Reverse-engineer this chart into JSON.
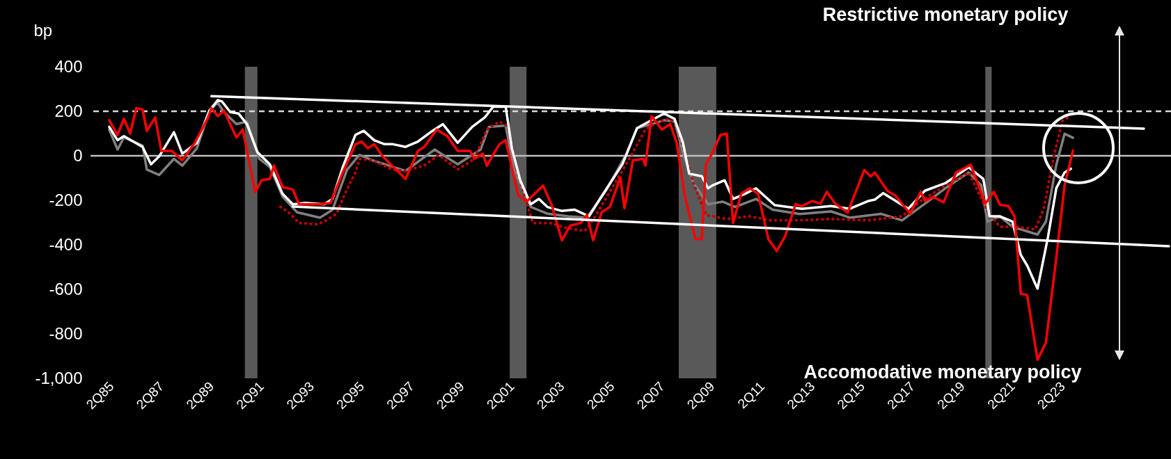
{
  "chart_data": {
    "type": "line",
    "ylabel": "bp",
    "xlim": [
      "1984-06",
      "2027-08"
    ],
    "ylim": [
      -1000,
      400
    ],
    "xticks": [
      {
        "value": "1985-04",
        "label": "2Q85"
      },
      {
        "value": "1987-04",
        "label": "2Q87"
      },
      {
        "value": "1989-04",
        "label": "2Q89"
      },
      {
        "value": "1991-04",
        "label": "2Q91"
      },
      {
        "value": "1993-04",
        "label": "2Q93"
      },
      {
        "value": "1995-04",
        "label": "2Q95"
      },
      {
        "value": "1997-04",
        "label": "2Q97"
      },
      {
        "value": "1999-04",
        "label": "2Q99"
      },
      {
        "value": "2001-04",
        "label": "2Q01"
      },
      {
        "value": "2003-04",
        "label": "2Q03"
      },
      {
        "value": "2005-04",
        "label": "2Q05"
      },
      {
        "value": "2007-04",
        "label": "2Q07"
      },
      {
        "value": "2009-04",
        "label": "2Q09"
      },
      {
        "value": "2011-04",
        "label": "2Q11"
      },
      {
        "value": "2013-04",
        "label": "2Q13"
      },
      {
        "value": "2015-04",
        "label": "2Q15"
      },
      {
        "value": "2017-04",
        "label": "2Q17"
      },
      {
        "value": "2019-04",
        "label": "2Q19"
      },
      {
        "value": "2021-04",
        "label": "2Q21"
      },
      {
        "value": "2023-04",
        "label": "2Q23"
      }
    ],
    "yticks": [
      {
        "value": -1000,
        "label": "-1,000"
      },
      -800,
      -600,
      -400,
      -200,
      0,
      200,
      400
    ],
    "grid": false,
    "bands": [
      {
        "axis": "x",
        "from": "1990-08",
        "to": "1991-02",
        "color": "#595959"
      },
      {
        "axis": "x",
        "from": "2001-03",
        "to": "2001-11",
        "color": "#595959"
      },
      {
        "axis": "x",
        "from": "2007-12",
        "to": "2009-06",
        "color": "#595959"
      },
      {
        "axis": "x",
        "from": "2020-03",
        "to": "2020-06",
        "color": "#595959"
      }
    ],
    "ref_lines": [
      {
        "axis": "y",
        "value": 200,
        "color": "#d9d9d9",
        "line_style": "dashed"
      },
      {
        "axis": "y",
        "value": 0,
        "color": "#bfbfbf",
        "line_style": "solid"
      }
    ],
    "annotations": [
      "Restrictive monetary policy",
      "Accomodative monetary policy"
    ],
    "series": [
      {
        "color": "#808080",
        "line_style": "solid",
        "x": [
          "1985-03",
          "1985-07",
          "1985-10",
          "1986-07",
          "1986-09",
          "1987-03",
          "1987-10",
          "1988-02",
          "1988-09",
          "1989-03",
          "1989-07",
          "1989-10",
          "1990-04",
          "1990-09",
          "1991-03",
          "1991-08",
          "1992-02",
          "1992-09",
          "1993-08",
          "1994-02",
          "1994-09",
          "1995-03",
          "1995-09",
          "1996-03",
          "1997-01",
          "1998-03",
          "1999-02",
          "2000-01",
          "2000-05",
          "2001-01",
          "2001-05",
          "2002-01",
          "2002-09",
          "2003-07",
          "2004-04",
          "2005-01",
          "2005-11",
          "2006-04",
          "2006-11",
          "2007-05",
          "2007-10",
          "2008-03",
          "2008-07",
          "2009-02",
          "2009-09",
          "2010-03",
          "2011-01",
          "2011-09",
          "2012-10",
          "2014-01",
          "2014-10",
          "2016-01",
          "2016-11",
          "2017-10",
          "2018-08",
          "2019-07",
          "2020-01",
          "2020-04",
          "2020-10",
          "2021-04",
          "2022-04",
          "2022-08",
          "2023-01",
          "2023-05",
          "2023-09"
        ],
        "values": [
          118,
          28,
          82,
          46,
          -62,
          -86,
          -14,
          -44,
          34,
          202,
          238,
          196,
          142,
          154,
          -14,
          -50,
          -182,
          -254,
          -278,
          -242,
          -62,
          4,
          -20,
          -38,
          -68,
          28,
          -38,
          28,
          130,
          136,
          -62,
          -230,
          -260,
          -272,
          -278,
          -158,
          10,
          124,
          142,
          160,
          154,
          -14,
          -122,
          -218,
          -206,
          -230,
          -194,
          -242,
          -262,
          -250,
          -278,
          -261,
          -290,
          -215,
          -145,
          -75,
          -133,
          -296,
          -272,
          -319,
          -354,
          -296,
          -40,
          99,
          81
        ]
      },
      {
        "color": "#c00000",
        "line_style": "dotted",
        "x": [
          "1992-01",
          "1992-05",
          "1992-10",
          "1993-07",
          "1993-11",
          "1994-04",
          "1994-08",
          "1995-01",
          "1995-03",
          "1995-09",
          "1996-07",
          "1997-01",
          "1997-10",
          "1998-05",
          "1999-02",
          "1999-10",
          "2000-04",
          "2000-10",
          "2001-02",
          "2001-07",
          "2001-11",
          "2002-02",
          "2002-10",
          "2003-07",
          "2004-03",
          "2004-08",
          "2005-04",
          "2006-01",
          "2006-08",
          "2007-01",
          "2007-07",
          "2007-11",
          "2008-03",
          "2008-07",
          "2009-01",
          "2009-11",
          "2010-10",
          "2011-08",
          "2012-10",
          "2014-01",
          "2015-07",
          "2016-11",
          "2017-08",
          "2018-08",
          "2019-07",
          "2020-04",
          "2020-10",
          "2021-05",
          "2022-03",
          "2022-07",
          "2022-12",
          "2023-04",
          "2023-07"
        ],
        "values": [
          -230,
          -254,
          -302,
          -308,
          -290,
          -260,
          -170,
          -74,
          -14,
          -20,
          -62,
          -68,
          -44,
          4,
          -62,
          -14,
          118,
          154,
          130,
          -86,
          -206,
          -302,
          -302,
          -326,
          -338,
          -272,
          -146,
          -2,
          118,
          148,
          166,
          142,
          10,
          -122,
          -266,
          -284,
          -272,
          -290,
          -290,
          -284,
          -290,
          -272,
          -203,
          -133,
          -75,
          -249,
          -319,
          -319,
          -330,
          -238,
          6,
          157,
          174
        ]
      },
      {
        "color": "#ffffff",
        "line_style": "solid",
        "x": [
          "1985-03",
          "1985-07",
          "1985-10",
          "1986-07",
          "1986-11",
          "1987-03",
          "1987-10",
          "1988-02",
          "1988-09",
          "1989-03",
          "1989-07",
          "1989-09",
          "1990-01",
          "1990-05",
          "1990-09",
          "1991-02",
          "1991-08",
          "1992-02",
          "1992-07",
          "1993-01",
          "1993-10",
          "1994-02",
          "1994-07",
          "1995-01",
          "1995-05",
          "1995-10",
          "1996-03",
          "1996-07",
          "1997-01",
          "1997-07",
          "1998-01",
          "1998-07",
          "1999-02",
          "1999-09",
          "2000-03",
          "2000-07",
          "2001-01",
          "2001-04",
          "2001-08",
          "2002-01",
          "2002-05",
          "2002-09",
          "2003-04",
          "2003-10",
          "2004-05",
          "2004-11",
          "2005-09",
          "2006-04",
          "2006-11",
          "2007-05",
          "2007-10",
          "2008-02",
          "2008-05",
          "2008-11",
          "2009-02",
          "2009-04",
          "2009-10",
          "2010-02",
          "2010-08",
          "2011-01",
          "2011-10",
          "2012-11",
          "2014-01",
          "2014-10",
          "2015-07",
          "2015-10",
          "2016-02",
          "2016-07",
          "2017-02",
          "2017-10",
          "2018-08",
          "2019-07",
          "2020-02",
          "2020-05",
          "2020-10",
          "2021-04",
          "2021-08",
          "2021-11",
          "2022-04",
          "2022-09",
          "2023-01",
          "2023-05",
          "2023-08"
        ],
        "values": [
          130,
          70,
          88,
          40,
          -38,
          -2,
          106,
          10,
          58,
          202,
          250,
          244,
          196,
          190,
          142,
          16,
          -38,
          -170,
          -218,
          -212,
          -218,
          -194,
          -50,
          94,
          112,
          70,
          52,
          52,
          40,
          64,
          106,
          142,
          58,
          130,
          172,
          220,
          220,
          34,
          -110,
          -218,
          -194,
          -230,
          -248,
          -242,
          -272,
          -182,
          -38,
          124,
          160,
          190,
          166,
          58,
          -80,
          -92,
          -146,
          -134,
          -110,
          -194,
          -170,
          -146,
          -222,
          -238,
          -226,
          -238,
          -203,
          -197,
          -168,
          -197,
          -238,
          -157,
          -122,
          -52,
          -104,
          -272,
          -272,
          -296,
          -446,
          -493,
          -597,
          -365,
          -145,
          -75,
          -58
        ]
      },
      {
        "color": "#ff0000",
        "line_style": "solid",
        "x": [
          "1985-03",
          "1985-07",
          "1985-10",
          "1986-01",
          "1986-04",
          "1986-07",
          "1986-09",
          "1987-01",
          "1987-04",
          "1987-09",
          "1988-02",
          "1988-08",
          "1989-02",
          "1989-04",
          "1989-07",
          "1989-10",
          "1990-04",
          "1990-07",
          "1991-01",
          "1991-04",
          "1991-08",
          "1991-10",
          "1992-02",
          "1992-07",
          "1992-10",
          "1993-08",
          "1994-01",
          "1994-07",
          "1995-01",
          "1995-04",
          "1995-07",
          "1995-10",
          "1996-02",
          "1997-01",
          "1997-07",
          "1997-10",
          "1998-04",
          "1998-09",
          "1999-02",
          "1999-08",
          "1999-10",
          "2000-02",
          "2000-04",
          "2000-10",
          "2001-01",
          "2001-07",
          "2001-11",
          "2002-07",
          "2002-11",
          "2003-04",
          "2003-08",
          "2004-01",
          "2004-04",
          "2004-07",
          "2004-11",
          "2005-03",
          "2005-08",
          "2005-10",
          "2006-02",
          "2006-07",
          "2006-08",
          "2006-11",
          "2007-01",
          "2007-04",
          "2007-08",
          "2007-11",
          "2008-03",
          "2008-08",
          "2008-11",
          "2009-01",
          "2009-04",
          "2009-08",
          "2009-11",
          "2010-02",
          "2010-06",
          "2010-10",
          "2011-02",
          "2011-07",
          "2011-11",
          "2012-03",
          "2012-08",
          "2012-11",
          "2013-04",
          "2013-08",
          "2013-11",
          "2014-03",
          "2014-09",
          "2015-05",
          "2015-08",
          "2015-10",
          "2016-04",
          "2016-08",
          "2017-03",
          "2017-08",
          "2017-10",
          "2018-02",
          "2018-07",
          "2019-01",
          "2019-08",
          "2020-03",
          "2020-07",
          "2020-10",
          "2021-02",
          "2021-05",
          "2021-08",
          "2021-11",
          "2022-04",
          "2022-08",
          "2023-01",
          "2023-05",
          "2023-09"
        ],
        "values": [
          160,
          94,
          166,
          100,
          214,
          208,
          112,
          172,
          22,
          22,
          -20,
          58,
          166,
          214,
          178,
          202,
          82,
          118,
          -164,
          -110,
          -104,
          -44,
          -140,
          -152,
          -218,
          -218,
          -212,
          -74,
          52,
          64,
          34,
          52,
          -2,
          -104,
          22,
          40,
          118,
          88,
          22,
          22,
          -14,
          10,
          -44,
          52,
          70,
          -176,
          -206,
          -134,
          -218,
          -380,
          -314,
          -302,
          -266,
          -380,
          -254,
          -230,
          -98,
          -236,
          -20,
          -14,
          -44,
          178,
          154,
          118,
          142,
          58,
          -182,
          -374,
          -374,
          -38,
          10,
          94,
          100,
          -302,
          -170,
          -146,
          -170,
          -374,
          -428,
          -362,
          -218,
          -226,
          -203,
          -215,
          -162,
          -215,
          -255,
          -64,
          -93,
          -75,
          -157,
          -180,
          -261,
          -162,
          -203,
          -185,
          -209,
          -75,
          -40,
          -215,
          -162,
          -220,
          -226,
          -272,
          -620,
          -626,
          -916,
          -841,
          -458,
          -133,
          23
        ]
      },
      {
        "color": "#ffffff",
        "line_style": "solid",
        "x": [
          "1989-04",
          "2026-07"
        ],
        "values": [
          268,
          122
        ]
      },
      {
        "color": "#ffffff",
        "line_style": "solid",
        "x": [
          "1992-07",
          "2027-07"
        ],
        "values": [
          -228,
          -406
        ]
      }
    ]
  }
}
